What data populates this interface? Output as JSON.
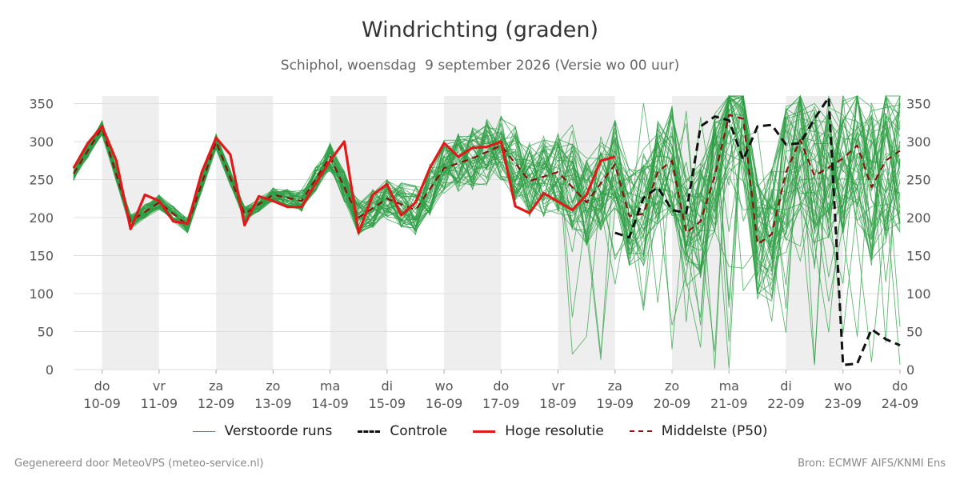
{
  "title": "Windrichting (graden)",
  "subtitle": "Schiphol, woensdag  9 september 2026 (Versie wo 00 uur)",
  "footer_left": "Gegenereerd door MeteoVPS (meteo-service.nl)",
  "footer_right": "Bron: ECMWF AIFS/KNMI Ens",
  "colors": {
    "ensemble": "#2e9e44",
    "control": "#111111",
    "high_res": "#e01a1a",
    "median": "#8b1010",
    "weekend_shade": "#eeeeee",
    "grid": "#dddddd"
  },
  "chart_data": {
    "type": "line",
    "x_unit": "days since 2026-09-09 00:00",
    "xlim": [
      0.5,
      15
    ],
    "ylim": [
      0,
      360
    ],
    "y_ticks": [
      0,
      50,
      100,
      150,
      200,
      250,
      300,
      350
    ],
    "x_ticks": [
      {
        "day": "do",
        "date": "10-09",
        "x": 1
      },
      {
        "day": "vr",
        "date": "11-09",
        "x": 2
      },
      {
        "day": "za",
        "date": "12-09",
        "x": 3
      },
      {
        "day": "zo",
        "date": "13-09",
        "x": 4
      },
      {
        "day": "ma",
        "date": "14-09",
        "x": 5
      },
      {
        "day": "di",
        "date": "15-09",
        "x": 6
      },
      {
        "day": "wo",
        "date": "16-09",
        "x": 7
      },
      {
        "day": "do",
        "date": "17-09",
        "x": 8
      },
      {
        "day": "vr",
        "date": "18-09",
        "x": 9
      },
      {
        "day": "za",
        "date": "19-09",
        "x": 10
      },
      {
        "day": "zo",
        "date": "20-09",
        "x": 11
      },
      {
        "day": "ma",
        "date": "21-09",
        "x": 12
      },
      {
        "day": "di",
        "date": "22-09",
        "x": 13
      },
      {
        "day": "wo",
        "date": "23-09",
        "x": 14
      },
      {
        "day": "do",
        "date": "24-09",
        "x": 15
      }
    ],
    "shaded_ranges": [
      [
        1,
        2
      ],
      [
        3,
        4
      ],
      [
        5,
        6
      ],
      [
        7,
        8
      ],
      [
        9,
        10
      ],
      [
        11,
        12
      ],
      [
        13,
        14
      ]
    ],
    "legend": [
      {
        "key": "ensemble",
        "label": "Verstoorde runs"
      },
      {
        "key": "control",
        "label": "Controle"
      },
      {
        "key": "high_res",
        "label": "Hoge resolutie"
      },
      {
        "key": "median",
        "label": "Middelste (P50)"
      }
    ],
    "series": [
      {
        "name": "Hoge resolutie",
        "key": "high_res",
        "x": [
          0.5,
          0.75,
          1.0,
          1.25,
          1.5,
          1.75,
          2.0,
          2.25,
          2.5,
          2.75,
          3.0,
          3.25,
          3.5,
          3.75,
          4.0,
          4.25,
          4.5,
          4.75,
          5.0,
          5.25,
          5.5,
          5.75,
          6.0,
          6.25,
          6.5,
          6.75,
          7.0,
          7.25,
          7.5,
          7.75,
          8.0,
          8.25,
          8.5,
          8.75,
          9.0,
          9.25,
          9.5,
          9.75,
          10.0
        ],
        "y": [
          265,
          298,
          320,
          275,
          185,
          230,
          222,
          195,
          192,
          260,
          305,
          283,
          190,
          228,
          222,
          214,
          214,
          245,
          275,
          300,
          180,
          230,
          244,
          203,
          220,
          265,
          298,
          280,
          292,
          293,
          300,
          215,
          206,
          232,
          221,
          210,
          230,
          275,
          280
        ]
      },
      {
        "name": "Controle",
        "key": "control",
        "x": [
          10.0,
          10.25,
          10.5,
          10.75,
          11.0,
          11.25,
          11.5,
          11.75,
          12.0,
          12.25,
          12.5,
          12.75,
          13.0,
          13.25,
          13.5,
          13.75,
          14.0,
          14.25,
          14.5,
          14.75,
          15.0
        ],
        "y": [
          180,
          174,
          226,
          240,
          210,
          206,
          320,
          333,
          328,
          276,
          320,
          322,
          296,
          298,
          330,
          358,
          6,
          8,
          53,
          40,
          32
        ]
      },
      {
        "name": "Middelste (P50)",
        "key": "median",
        "x": [
          0.5,
          1.0,
          1.5,
          2.0,
          2.5,
          3.0,
          3.5,
          4.0,
          4.5,
          5.0,
          5.5,
          6.0,
          6.5,
          7.0,
          7.5,
          8.0,
          8.5,
          9.0,
          9.5,
          10.0,
          10.25,
          10.5,
          10.75,
          11.0,
          11.25,
          11.5,
          11.75,
          12.0,
          12.25,
          12.5,
          12.75,
          13.0,
          13.25,
          13.5,
          13.75,
          14.0,
          14.25,
          14.5,
          14.75,
          15.0
        ],
        "y": [
          258,
          318,
          195,
          220,
          190,
          300,
          205,
          230,
          222,
          280,
          200,
          225,
          210,
          265,
          278,
          295,
          248,
          260,
          220,
          270,
          202,
          205,
          260,
          275,
          180,
          195,
          255,
          335,
          330,
          165,
          178,
          260,
          302,
          255,
          266,
          278,
          295,
          240,
          275,
          288
        ]
      }
    ]
  }
}
